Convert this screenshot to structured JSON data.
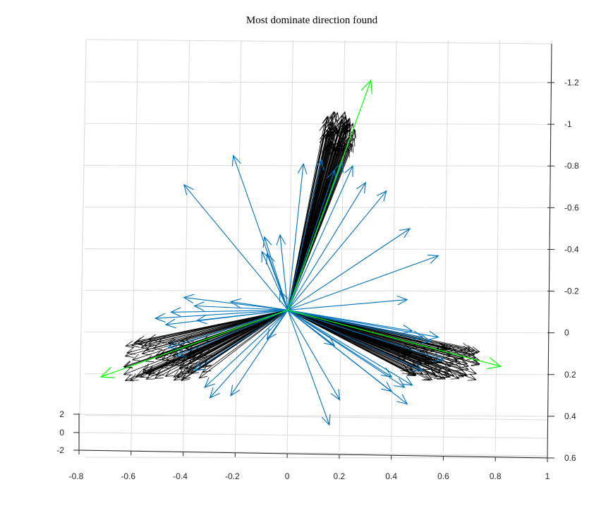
{
  "chart_data": {
    "type": "quiver3",
    "title": "Most dominate direction found",
    "xlabel": "",
    "ylabel": "",
    "zlabel": "",
    "grid": true,
    "xlim": [
      -0.8,
      1
    ],
    "ylim": [
      0.6,
      -1.2
    ],
    "zlim": [
      -2,
      2
    ],
    "x_ticks": [
      "-0.8",
      "-0.6",
      "-0.4",
      "-0.2",
      "0",
      "0.2",
      "0.4",
      "0.6",
      "0.8",
      "1"
    ],
    "y_ticks": [
      "-1.2",
      "-1",
      "-0.8",
      "-0.6",
      "-0.4",
      "-0.2",
      "0",
      "0.2",
      "0.4",
      "0.6"
    ],
    "z_ticks": [
      "2",
      "0",
      "-2"
    ],
    "origin": [
      0,
      -0.1
    ],
    "series": [
      {
        "color": "#000000",
        "kind": "clusters",
        "clusters": [
          {
            "center": [
              0.2,
              -0.96
            ],
            "spread": [
              0.12,
              0.18
            ],
            "count": 90
          },
          {
            "center": [
              -0.48,
              0.14
            ],
            "spread": [
              0.32,
              0.2
            ],
            "count": 90
          },
          {
            "center": [
              0.6,
              0.16
            ],
            "spread": [
              0.3,
              0.16
            ],
            "count": 90
          }
        ]
      },
      {
        "color": "#0072BD",
        "kind": "vectors",
        "vectors": [
          [
            -0.21,
            -0.84
          ],
          [
            -0.4,
            -0.7
          ],
          [
            -0.03,
            -0.46
          ],
          [
            -0.09,
            -0.45
          ],
          [
            -0.1,
            -0.38
          ],
          [
            -0.08,
            -0.37
          ],
          [
            0.06,
            -0.8
          ],
          [
            0.13,
            -0.82
          ],
          [
            0.18,
            -0.77
          ],
          [
            0.21,
            -0.81
          ],
          [
            0.25,
            -0.79
          ],
          [
            0.3,
            -0.71
          ],
          [
            0.38,
            -0.67
          ],
          [
            0.47,
            -0.49
          ],
          [
            0.58,
            -0.36
          ],
          [
            0.46,
            -0.15
          ],
          [
            -0.03,
            -0.19
          ],
          [
            -0.4,
            -0.16
          ],
          [
            -0.36,
            -0.12
          ],
          [
            -0.22,
            -0.14
          ],
          [
            -0.45,
            -0.09
          ],
          [
            -0.35,
            -0.05
          ],
          [
            -0.47,
            -0.03
          ],
          [
            -0.51,
            -0.06
          ],
          [
            -0.08,
            0.04
          ],
          [
            -0.46,
            0.08
          ],
          [
            -0.43,
            0.12
          ],
          [
            -0.36,
            0.19
          ],
          [
            -0.32,
            0.27
          ],
          [
            -0.3,
            0.32
          ],
          [
            -0.22,
            0.31
          ],
          [
            0.16,
            0.45
          ],
          [
            0.2,
            0.33
          ],
          [
            0.46,
            0.35
          ],
          [
            0.4,
            0.29
          ],
          [
            0.48,
            0.26
          ],
          [
            0.52,
            0.19
          ],
          [
            0.6,
            0.14
          ],
          [
            0.58,
            0.03
          ],
          [
            0.48,
            0.0
          ],
          [
            0.52,
            0.03
          ],
          [
            0.55,
            0.05
          ],
          [
            0.18,
            0.07
          ],
          [
            0.4,
            0.22
          ],
          [
            0.45,
            0.27
          ]
        ]
      },
      {
        "color": "#00FF00",
        "kind": "dominant",
        "vectors": [
          [
            0.32,
            -1.2
          ],
          [
            -0.72,
            0.22
          ],
          [
            0.82,
            0.17
          ]
        ]
      }
    ]
  }
}
